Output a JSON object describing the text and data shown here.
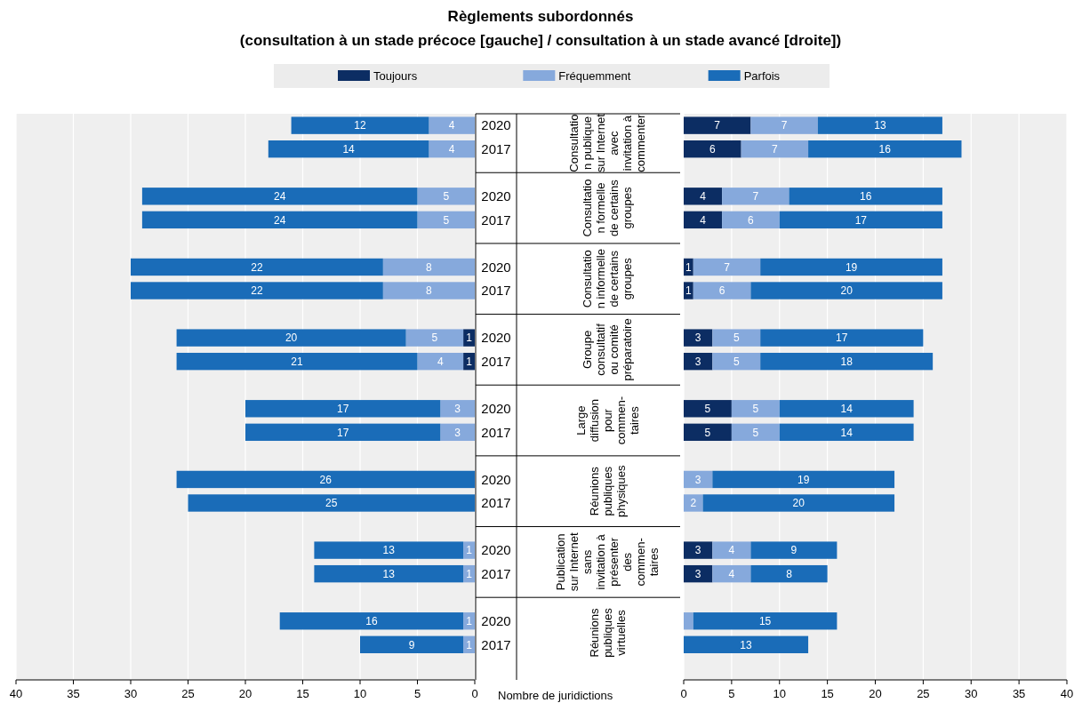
{
  "chart_data": [
    {
      "type": "bar",
      "orientation": "horizontal",
      "stacked": true,
      "title": "Règlements subordonnés",
      "subtitle": "(consultation à un stade précoce [gauche] / consultation à un stade avancé [droite])",
      "xlabel": "Nombre de juridictions",
      "categories": [
        "2020",
        "2017",
        null,
        "2020",
        "2017",
        null,
        "2020",
        "2017",
        null,
        "2020",
        "2017",
        null,
        "2020",
        "2017",
        null,
        "2020",
        "2017",
        null,
        "2020",
        "2017",
        null,
        "2020",
        "2017",
        null
      ],
      "annotations": [
        "Consultatio\nn publique\nsur Internet\navec\ninvitation à\ncommenter",
        "Consultatio\nn formelle\nde certains\ngroupes",
        "Consultatio\nn informelle\nde certains\ngroupes",
        "Groupe\nconsultatif\nou comité\npréparatoire",
        "Large\ndiffusion\npour\ncommen-\ntaires",
        "Réunions\npubliques\nphysiques",
        "Publication\nsur Internet\nsans\ninvitation à\nprésenter\ndes\ncommen-\ntaires",
        "Réunions\npubliques\nvirtuelles"
      ],
      "series": [
        {
          "name": "Toujours",
          "color": "#0c2d63",
          "values": [
            null,
            null,
            null,
            null,
            null,
            null,
            null,
            null,
            null,
            1,
            1,
            null,
            null,
            null,
            null,
            null,
            null,
            null,
            null,
            null,
            null,
            null,
            null,
            null
          ]
        },
        {
          "name": "Fréquemment",
          "color": "#86a9dc",
          "values": [
            4,
            4,
            null,
            5,
            5,
            null,
            8,
            8,
            null,
            5,
            4,
            null,
            3,
            3,
            null,
            null,
            null,
            null,
            1,
            1,
            null,
            1,
            1,
            null
          ]
        },
        {
          "name": "Parfois",
          "color": "#1a6cb8",
          "values": [
            12,
            14,
            null,
            24,
            24,
            null,
            22,
            22,
            null,
            20,
            21,
            null,
            17,
            17,
            null,
            26,
            25,
            null,
            13,
            13,
            null,
            16,
            9,
            null
          ]
        }
      ],
      "data_labels": true,
      "xlim": [
        40,
        0
      ],
      "xticks": [
        40,
        35,
        30,
        25,
        20,
        15,
        10,
        5,
        0
      ],
      "grid": "x",
      "legend": "top"
    },
    {
      "type": "bar",
      "orientation": "horizontal",
      "stacked": true,
      "categories": [
        null,
        null,
        null,
        null,
        null,
        null,
        null,
        null,
        null,
        null,
        null,
        null,
        null,
        null,
        null,
        null,
        null,
        null,
        null,
        null,
        null,
        null,
        null,
        null
      ],
      "series": [
        {
          "color": "#0c2d63",
          "values": [
            7,
            6,
            null,
            4,
            4,
            null,
            1,
            1,
            null,
            3,
            3,
            null,
            5,
            5,
            null,
            null,
            null,
            null,
            3,
            3,
            null,
            null,
            null,
            null
          ],
          "value_labels": [
            "7",
            "6",
            null,
            "4",
            "4",
            null,
            "1",
            "1",
            null,
            "3",
            "3",
            null,
            "5",
            "5",
            null,
            null,
            null,
            null,
            "3",
            "3",
            null,
            null,
            null,
            null
          ]
        },
        {
          "color": "#86a9dc",
          "values": [
            7,
            7,
            null,
            7,
            6,
            null,
            7,
            6,
            null,
            5,
            5,
            null,
            5,
            5,
            null,
            3,
            2,
            null,
            4,
            4,
            null,
            1,
            null,
            null
          ],
          "value_labels": [
            "7",
            "7",
            null,
            "7",
            "6",
            null,
            "7",
            "6",
            null,
            "5",
            "5",
            null,
            "5",
            "5",
            null,
            "3",
            "2",
            null,
            "4",
            "4",
            null,
            null,
            null,
            null
          ]
        },
        {
          "color": "#1a6cb8",
          "values": [
            13,
            16,
            null,
            16,
            17,
            null,
            19,
            20,
            null,
            17,
            18,
            null,
            14,
            14,
            null,
            19,
            20,
            null,
            9,
            8,
            null,
            15,
            13,
            null
          ],
          "value_labels": [
            "13",
            "16",
            null,
            "16",
            "17",
            null,
            "19",
            "20",
            null,
            "17",
            "18",
            null,
            "14",
            "14",
            null,
            "19",
            "20",
            null,
            "9",
            "8",
            null,
            "15",
            "13",
            null
          ]
        }
      ],
      "xlim": [
        0,
        40
      ],
      "xticks": [
        0,
        5,
        10,
        15,
        20,
        25,
        30,
        35,
        40
      ],
      "grid": "x"
    }
  ]
}
